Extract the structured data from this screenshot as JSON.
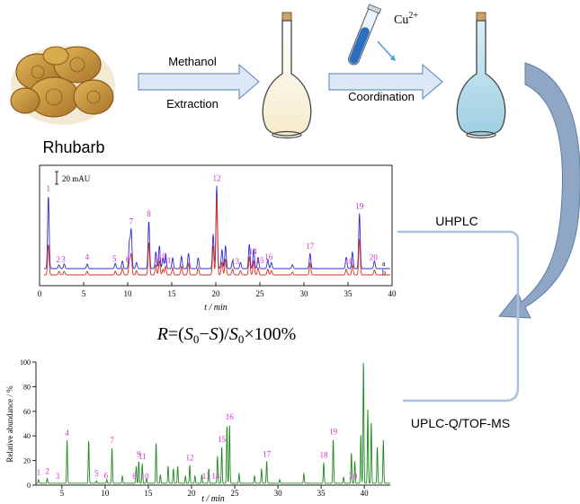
{
  "workflow": {
    "sample_label": "Rhubarb",
    "step1_top": "Methanol",
    "step1_bottom": "Extraction",
    "reagent_base": "Cu",
    "reagent_sup": "2+",
    "step2_bottom": "Coordination",
    "uhplc_label": "UHPLC",
    "ms_label": "UPLC-Q/TOF-MS"
  },
  "formula": {
    "R": "R",
    "eq": "=(",
    "S0a": "S",
    "sub0a": "0",
    "minus": "−",
    "S": "S",
    "close": ")/",
    "S0b": "S",
    "sub0b": "0",
    "tail": "×100%"
  },
  "colors": {
    "peak_label": "#cc33cc",
    "trace_a": "#2b2bd6",
    "trace_b": "#d8301a",
    "trace_ms": "#1e8a1e",
    "arrow_fill": "#dce8f5",
    "arrow_stroke": "#6f95bf",
    "curve_arrow": "#8fa6c4",
    "connector": "#a9c3df",
    "flask_liquid": "#b7dbea",
    "flask_empty": "#fcf7e8",
    "rhubarb": "#c99a3a"
  },
  "chart_data": [
    {
      "type": "line",
      "xlabel": "t / min",
      "xlim": [
        0,
        40
      ],
      "xticks": [
        0,
        5,
        10,
        15,
        20,
        25,
        30,
        35,
        40
      ],
      "scale_bar": "20 mAU",
      "series": [
        {
          "name": "a",
          "color": "#2b2bd6",
          "baseline": 0.0,
          "scale": 1.0,
          "peaks": [
            [
              1.0,
              95
            ],
            [
              2.2,
              5
            ],
            [
              2.8,
              6
            ],
            [
              5.4,
              6
            ],
            [
              8.6,
              7
            ],
            [
              9.4,
              10
            ],
            [
              10.2,
              35
            ],
            [
              10.4,
              50
            ],
            [
              11.0,
              8
            ],
            [
              12.4,
              62
            ],
            [
              13.2,
              22
            ],
            [
              13.6,
              30
            ],
            [
              14.0,
              14
            ],
            [
              14.3,
              20
            ],
            [
              15.1,
              14
            ],
            [
              16.1,
              16
            ],
            [
              16.9,
              20
            ],
            [
              18.0,
              14
            ],
            [
              19.7,
              45
            ],
            [
              20.1,
              108
            ],
            [
              20.7,
              25
            ],
            [
              21.1,
              30
            ],
            [
              21.9,
              10
            ],
            [
              22.8,
              8
            ],
            [
              23.8,
              32
            ],
            [
              24.3,
              26
            ],
            [
              24.8,
              15
            ],
            [
              25.9,
              12
            ],
            [
              26.3,
              8
            ],
            [
              28.7,
              5
            ],
            [
              30.7,
              20
            ],
            [
              34.8,
              15
            ],
            [
              35.5,
              22
            ],
            [
              36.3,
              72
            ],
            [
              38.0,
              10
            ]
          ]
        },
        {
          "name": "b",
          "color": "#d8301a",
          "baseline": -7.0,
          "scale": 0.62,
          "peaks": [
            [
              1.0,
              42
            ],
            [
              2.2,
              5
            ],
            [
              2.8,
              5
            ],
            [
              5.4,
              5
            ],
            [
              8.6,
              5
            ],
            [
              9.4,
              10
            ],
            [
              10.2,
              20
            ],
            [
              10.4,
              28
            ],
            [
              11.0,
              6
            ],
            [
              12.4,
              45
            ],
            [
              13.2,
              14
            ],
            [
              13.6,
              20
            ],
            [
              14.0,
              8
            ],
            [
              14.3,
              12
            ],
            [
              15.1,
              10
            ],
            [
              16.1,
              12
            ],
            [
              16.9,
              16
            ],
            [
              18.0,
              10
            ],
            [
              19.7,
              40
            ],
            [
              20.1,
              108
            ],
            [
              20.7,
              18
            ],
            [
              21.1,
              22
            ],
            [
              21.9,
              8
            ],
            [
              22.8,
              6
            ],
            [
              23.8,
              25
            ],
            [
              24.3,
              20
            ],
            [
              24.8,
              10
            ],
            [
              25.9,
              8
            ],
            [
              26.3,
              6
            ],
            [
              28.7,
              4
            ],
            [
              30.7,
              16
            ],
            [
              34.8,
              8
            ],
            [
              35.5,
              14
            ],
            [
              36.3,
              50
            ],
            [
              38.0,
              7
            ]
          ]
        }
      ],
      "peak_labels": [
        {
          "text": "1",
          "t": 1.0
        },
        {
          "text": "2",
          "t": 2.1
        },
        {
          "text": "3",
          "t": 2.7
        },
        {
          "text": "4",
          "t": 5.4
        },
        {
          "text": "5",
          "t": 8.5
        },
        {
          "text": "6",
          "t": 10.0
        },
        {
          "text": "7",
          "t": 10.4
        },
        {
          "text": "8",
          "t": 12.4
        },
        {
          "text": "9",
          "t": 13.4
        },
        {
          "text": "10",
          "t": 13.9
        },
        {
          "text": "11",
          "t": 14.5
        },
        {
          "text": "12",
          "t": 20.1
        },
        {
          "text": "13",
          "t": 22.2
        },
        {
          "text": "14",
          "t": 24.2
        },
        {
          "text": "15",
          "t": 25.0
        },
        {
          "text": "16",
          "t": 26.0
        },
        {
          "text": "17",
          "t": 30.7
        },
        {
          "text": "18",
          "t": 35.1
        },
        {
          "text": "19",
          "t": 36.3
        },
        {
          "text": "20",
          "t": 37.9
        }
      ],
      "series_labels": [
        "a",
        "b"
      ]
    },
    {
      "type": "line",
      "xlabel": "t / min",
      "ylabel": "Relative abundance / %",
      "xlim": [
        2,
        43
      ],
      "ylim": [
        0,
        100
      ],
      "xticks": [
        5,
        10,
        15,
        20,
        25,
        30,
        35,
        40
      ],
      "yticks": [
        0,
        20,
        40,
        60,
        80,
        100
      ],
      "series": [
        {
          "name": "",
          "color": "#1e8a1e",
          "peaks": [
            [
              2.3,
              3
            ],
            [
              3.3,
              4
            ],
            [
              5.6,
              35
            ],
            [
              8.1,
              35
            ],
            [
              9.0,
              2
            ],
            [
              10.2,
              3
            ],
            [
              10.8,
              29
            ],
            [
              12.0,
              6
            ],
            [
              13.6,
              14
            ],
            [
              13.9,
              18
            ],
            [
              14.3,
              16
            ],
            [
              14.8,
              4
            ],
            [
              15.9,
              33
            ],
            [
              16.4,
              7
            ],
            [
              17.3,
              14
            ],
            [
              17.9,
              12
            ],
            [
              18.4,
              14
            ],
            [
              19.3,
              6
            ],
            [
              19.8,
              15
            ],
            [
              20.4,
              6
            ],
            [
              21.2,
              7
            ],
            [
              22.0,
              12
            ],
            [
              23.0,
              22
            ],
            [
              23.5,
              30
            ],
            [
              24.1,
              47
            ],
            [
              24.4,
              48
            ],
            [
              25.5,
              8
            ],
            [
              27.3,
              6
            ],
            [
              28.1,
              12
            ],
            [
              28.7,
              18
            ],
            [
              30.2,
              3
            ],
            [
              33.0,
              8
            ],
            [
              35.3,
              17
            ],
            [
              36.4,
              36
            ],
            [
              37.6,
              5
            ],
            [
              38.5,
              25
            ],
            [
              38.9,
              18
            ],
            [
              39.6,
              40
            ],
            [
              39.9,
              100
            ],
            [
              40.4,
              60
            ],
            [
              40.8,
              50
            ],
            [
              41.5,
              30
            ],
            [
              42.2,
              35
            ]
          ]
        }
      ],
      "peak_labels": [
        {
          "text": "1",
          "t": 2.3
        },
        {
          "text": "2",
          "t": 3.3
        },
        {
          "text": "3",
          "t": 4.5
        },
        {
          "text": "4",
          "t": 5.6
        },
        {
          "text": "5",
          "t": 9.0
        },
        {
          "text": "6",
          "t": 10.1
        },
        {
          "text": "7",
          "t": 10.8
        },
        {
          "text": "8",
          "t": 13.4
        },
        {
          "text": "9",
          "t": 13.9
        },
        {
          "text": "10",
          "t": 14.6
        },
        {
          "text": "11",
          "t": 14.3
        },
        {
          "text": "12",
          "t": 19.8
        },
        {
          "text": "13",
          "t": 21.7
        },
        {
          "text": "14",
          "t": 22.8
        },
        {
          "text": "15",
          "t": 23.5
        },
        {
          "text": "16",
          "t": 24.4
        },
        {
          "text": "17",
          "t": 28.7
        },
        {
          "text": "18",
          "t": 35.3
        },
        {
          "text": "19",
          "t": 36.4
        },
        {
          "text": "20",
          "t": 38.7
        }
      ]
    }
  ]
}
